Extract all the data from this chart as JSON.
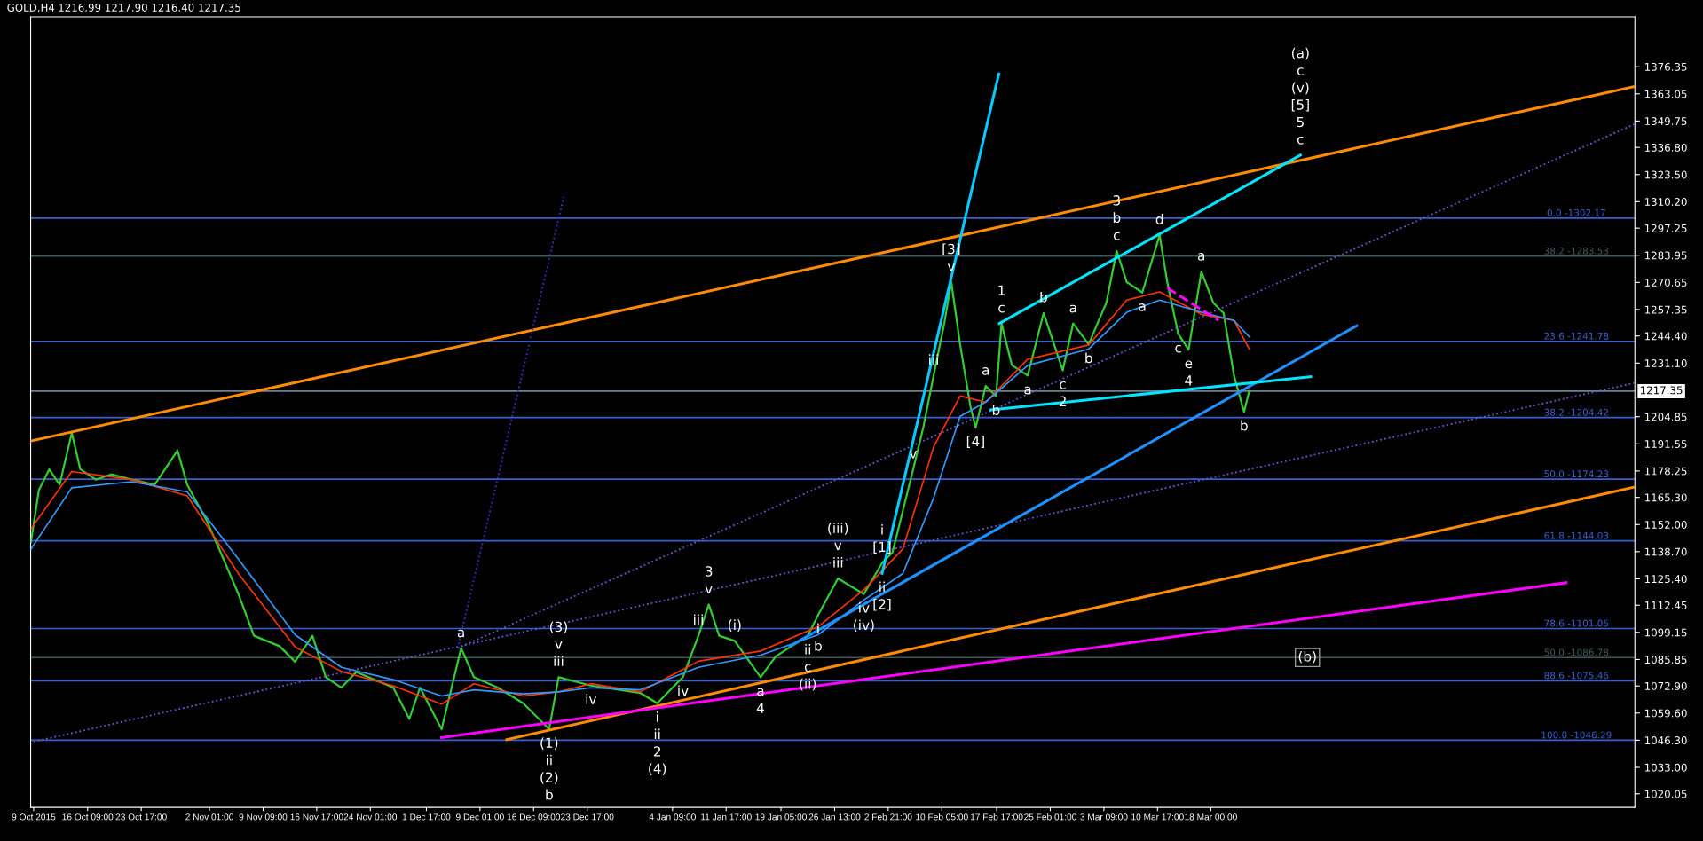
{
  "chart_data": {
    "type": "line",
    "title": "GOLD,H4",
    "subtitle": "1216.99 1217.90 1216.40 1217.35",
    "xlim": [
      "2015-10-08T14:00",
      "2016-05-15T00:00"
    ],
    "ylim": [
      1013.4,
      1400.8
    ],
    "xticks": [
      {
        "value": "2015-10-09T00:00",
        "label": "9 Oct 2015"
      },
      {
        "value": "2015-10-16T09:00",
        "label": "16 Oct 09:00"
      },
      {
        "value": "2015-10-23T17:00",
        "label": "23 Oct 17:00"
      },
      {
        "value": "2015-11-02T01:00",
        "label": "2 Nov 01:00"
      },
      {
        "value": "2015-11-09T09:00",
        "label": "9 Nov 09:00"
      },
      {
        "value": "2015-11-16T17:00",
        "label": "16 Nov 17:00"
      },
      {
        "value": "2015-11-24T01:00",
        "label": "24 Nov 01:00"
      },
      {
        "value": "2015-12-01T17:00",
        "label": "1 Dec 17:00"
      },
      {
        "value": "2015-12-09T01:00",
        "label": "9 Dec 01:00"
      },
      {
        "value": "2015-12-16T09:00",
        "label": "16 Dec 09:00"
      },
      {
        "value": "2015-12-23T17:00",
        "label": "23 Dec 17:00"
      },
      {
        "value": "2016-01-04T09:00",
        "label": "4 Jan 09:00"
      },
      {
        "value": "2016-01-11T17:00",
        "label": "11 Jan 17:00"
      },
      {
        "value": "2016-01-19T05:00",
        "label": "19 Jan 05:00"
      },
      {
        "value": "2016-01-26T13:00",
        "label": "26 Jan 13:00"
      },
      {
        "value": "2016-02-02T21:00",
        "label": "2 Feb 21:00"
      },
      {
        "value": "2016-02-10T05:00",
        "label": "10 Feb 05:00"
      },
      {
        "value": "2016-02-17T17:00",
        "label": "17 Feb 17:00"
      },
      {
        "value": "2016-02-25T01:00",
        "label": "25 Feb 01:00"
      },
      {
        "value": "2016-03-03T09:00",
        "label": "3 Mar 09:00"
      },
      {
        "value": "2016-03-10T17:00",
        "label": "10 Mar 17:00"
      },
      {
        "value": "2016-03-18T00:00",
        "label": "18 Mar 00:00"
      }
    ],
    "yticks": [
      {
        "value": 1020.05,
        "label": "1020.05"
      },
      {
        "value": 1033.0,
        "label": "1033.00"
      },
      {
        "value": 1046.3,
        "label": "1046.30"
      },
      {
        "value": 1059.6,
        "label": "1059.60"
      },
      {
        "value": 1072.9,
        "label": "1072.90"
      },
      {
        "value": 1085.85,
        "label": "1085.85"
      },
      {
        "value": 1099.15,
        "label": "1099.15"
      },
      {
        "value": 1112.45,
        "label": "1112.45"
      },
      {
        "value": 1125.4,
        "label": "1125.40"
      },
      {
        "value": 1138.7,
        "label": "1138.70"
      },
      {
        "value": 1152.0,
        "label": "1152.00"
      },
      {
        "value": 1165.3,
        "label": "1165.30"
      },
      {
        "value": 1178.25,
        "label": "1178.25"
      },
      {
        "value": 1191.55,
        "label": "1191.55"
      },
      {
        "value": 1204.85,
        "label": "1204.85"
      },
      {
        "value": 1231.1,
        "label": "1231.10"
      },
      {
        "value": 1244.4,
        "label": "1244.40"
      },
      {
        "value": 1257.35,
        "label": "1257.35"
      },
      {
        "value": 1270.65,
        "label": "1270.65"
      },
      {
        "value": 1283.95,
        "label": "1283.95"
      },
      {
        "value": 1297.25,
        "label": "1297.25"
      },
      {
        "value": 1310.2,
        "label": "1310.20"
      },
      {
        "value": 1323.5,
        "label": "1323.50"
      },
      {
        "value": 1336.8,
        "label": "1336.80"
      },
      {
        "value": 1349.75,
        "label": "1349.75"
      },
      {
        "value": 1363.05,
        "label": "1363.05"
      },
      {
        "value": 1376.35,
        "label": "1376.35"
      }
    ],
    "grid": false,
    "series": [
      {
        "color": "#33cc33",
        "x": [
          "2015-10-08T15:00",
          "2015-10-09T17:00",
          "2015-10-11T03:00",
          "2015-10-12T13:00",
          "2015-10-14T05:00",
          "2015-10-15T09:00",
          "2015-10-17T12:00",
          "2015-10-19T14:00",
          "2015-10-22T10:00",
          "2015-10-25T13:00",
          "2015-10-28T16:00",
          "2015-10-30T00:00",
          "2015-11-01T17:00",
          "2015-11-03T21:00",
          "2015-11-06T00:00",
          "2015-11-08T03:00",
          "2015-11-11T15:00",
          "2015-11-13T18:00",
          "2015-11-16T03:00",
          "2015-11-17T23:00",
          "2015-11-20T02:00",
          "2015-11-22T03:00",
          "2015-11-27T04:00",
          "2015-11-29T09:00",
          "2015-11-30T20:00",
          "2015-12-03T19:00",
          "2015-12-06T11:00",
          "2015-12-08T05:00",
          "2015-12-11T11:00",
          "2015-12-14T23:00",
          "2015-12-18T12:00",
          "2015-12-19T19:00",
          "2015-12-24T05:00",
          "2015-12-30T23:00",
          "2016-01-02T07:00",
          "2016-01-05T19:00",
          "2016-01-07T22:00",
          "2016-01-09T08:00",
          "2016-01-10T18:00",
          "2016-01-12T21:00",
          "2016-01-16T10:00",
          "2016-01-18T12:00",
          "2016-01-22T21:00",
          "2016-01-24T07:00",
          "2016-01-27T00:00",
          "2016-01-30T13:00",
          "2016-02-02T01:00",
          "2016-02-03T11:00",
          "2016-02-04T21:00",
          "2016-02-06T07:00",
          "2016-02-07T16:00",
          "2016-02-09T02:00",
          "2016-02-10T13:00",
          "2016-02-11T12:00",
          "2016-02-12T17:00",
          "2016-02-14T03:00",
          "2016-02-14T20:00",
          "2016-02-16T05:00",
          "2016-02-17T15:00",
          "2016-02-18T09:00",
          "2016-02-19T19:00",
          "2016-02-21T23:00",
          "2016-02-24T03:00",
          "2016-02-26T18:00",
          "2016-02-28T04:00",
          "2016-03-01T07:00",
          "2016-03-03T17:00",
          "2016-03-05T03:00",
          "2016-03-06T12:00",
          "2016-03-08T15:00",
          "2016-03-11T00:00",
          "2016-03-12T01:00",
          "2016-03-13T13:00",
          "2016-03-14T23:00",
          "2016-03-16T17:00",
          "2016-03-18T08:00",
          "2016-03-19T18:00",
          "2016-03-21T04:00",
          "2016-03-22T13:00",
          "2016-03-23T06:00"
        ],
        "values": [
          1143.4,
          1168.9,
          1179.1,
          1171.5,
          1196.9,
          1179.1,
          1174.0,
          1176.6,
          1174.0,
          1171.5,
          1188.3,
          1171.5,
          1153.6,
          1135.8,
          1117.9,
          1097.5,
          1092.4,
          1084.8,
          1097.5,
          1077.2,
          1072.1,
          1079.7,
          1072.1,
          1056.8,
          1072.1,
          1051.7,
          1091.4,
          1077.2,
          1072.1,
          1064.4,
          1051.7,
          1077.2,
          1073.1,
          1069.5,
          1064.4,
          1077.2,
          1097.5,
          1112.8,
          1097.5,
          1095.0,
          1077.2,
          1087.4,
          1097.5,
          1107.7,
          1125.6,
          1117.9,
          1133.2,
          1138.3,
          1158.7,
          1179.1,
          1199.5,
          1225.0,
          1250.5,
          1270.8,
          1240.3,
          1209.7,
          1199.5,
          1219.9,
          1214.8,
          1250.5,
          1230.1,
          1225.0,
          1255.6,
          1227.5,
          1250.5,
          1240.3,
          1260.7,
          1286.1,
          1270.8,
          1265.7,
          1293.8,
          1270.8,
          1245.4,
          1237.7,
          1276.0,
          1260.7,
          1255.6,
          1225.0,
          1207.2,
          1217.4
        ]
      },
      {
        "color": "#ff3300",
        "x": [
          "2015-10-08T15:00",
          "2015-10-14T05:00",
          "2015-10-22T10:00",
          "2015-10-30T00:00",
          "2015-11-06T00:00",
          "2015-11-13T18:00",
          "2015-11-20T02:00",
          "2015-11-27T04:00",
          "2015-12-03T19:00",
          "2015-12-08T05:00",
          "2015-12-14T23:00",
          "2015-12-19T19:00",
          "2015-12-24T05:00",
          "2015-12-30T23:00",
          "2016-01-07T22:00",
          "2016-01-16T10:00",
          "2016-01-24T07:00",
          "2016-01-30T13:00",
          "2016-02-04T21:00",
          "2016-02-09T02:00",
          "2016-02-12T17:00",
          "2016-02-16T05:00",
          "2016-02-21T23:00",
          "2016-03-01T07:00",
          "2016-03-06T12:00",
          "2016-03-11T00:00",
          "2016-03-16T17:00",
          "2016-03-21T04:00",
          "2016-03-23T06:00"
        ],
        "values": [
          1150,
          1178,
          1174,
          1166,
          1128,
          1092,
          1080,
          1073,
          1064,
          1074,
          1068,
          1070,
          1074,
          1070,
          1085,
          1090,
          1102,
          1120,
          1140,
          1190,
          1215,
          1212,
          1233,
          1240,
          1262,
          1266,
          1255,
          1252,
          1238
        ]
      },
      {
        "color": "#3399ff",
        "x": [
          "2015-10-08T15:00",
          "2015-10-14T05:00",
          "2015-10-22T10:00",
          "2015-10-30T00:00",
          "2015-11-06T00:00",
          "2015-11-13T18:00",
          "2015-11-20T02:00",
          "2015-11-27T04:00",
          "2015-12-03T19:00",
          "2015-12-08T05:00",
          "2015-12-14T23:00",
          "2015-12-19T19:00",
          "2015-12-24T05:00",
          "2015-12-30T23:00",
          "2016-01-07T22:00",
          "2016-01-16T10:00",
          "2016-01-24T07:00",
          "2016-01-30T13:00",
          "2016-02-04T21:00",
          "2016-02-09T02:00",
          "2016-02-12T17:00",
          "2016-02-16T05:00",
          "2016-02-21T23:00",
          "2016-03-01T07:00",
          "2016-03-06T12:00",
          "2016-03-11T00:00",
          "2016-03-16T17:00",
          "2016-03-21T04:00",
          "2016-03-23T06:00"
        ],
        "values": [
          1140,
          1170,
          1173,
          1168,
          1135,
          1098,
          1082,
          1076,
          1068,
          1071,
          1069,
          1070,
          1072,
          1071,
          1082,
          1088,
          1098,
          1115,
          1128,
          1165,
          1205,
          1212,
          1230,
          1238,
          1256,
          1262,
          1256,
          1252,
          1244
        ]
      },
      {
        "color": "#ff8c00",
        "x": [
          "2015-10-08T14:00",
          "2016-05-15T00:00"
        ],
        "values": [
          1192.9,
          1366.7
        ]
      },
      {
        "color": "#ff8c00",
        "x": [
          "2015-12-12T17:00",
          "2016-05-15T00:00"
        ],
        "values": [
          1046.6,
          1170.4
        ]
      },
      {
        "color": "#ff00ff",
        "x": [
          "2015-12-03T19:00",
          "2016-05-05T14:00"
        ],
        "values": [
          1047.6,
          1123.5
        ]
      },
      {
        "color": "#6a5acd",
        "line_style": "dotted",
        "x": [
          "2015-12-06T00:00",
          "2016-05-15T00:00"
        ],
        "values": [
          1091.4,
          1348.3
        ]
      },
      {
        "color": "#6a5acd",
        "line_style": "dotted",
        "x": [
          "2015-10-09T00:00",
          "2016-05-15T00:00"
        ],
        "values": [
          1045.6,
          1221.4
        ]
      },
      {
        "color": "#3333cc",
        "line_style": "dotted",
        "x": [
          "2015-12-06T00:00",
          "2015-12-20T12:00"
        ],
        "values": [
          1091.4,
          1312.6
        ]
      },
      {
        "color": "#00ccff",
        "x": [
          "2016-02-02T01:00",
          "2016-02-18T00:00"
        ],
        "values": [
          1128.1,
          1372.8
        ]
      },
      {
        "color": "#1e90ff",
        "x": [
          "2016-01-20T10:00",
          "2016-04-06T23:00"
        ],
        "values": [
          1092.4,
          1249.4
        ]
      },
      {
        "color": "#00e5ff",
        "x": [
          "2016-02-18T02:00",
          "2016-03-30T06:00"
        ],
        "values": [
          1250.5,
          1333.0
        ]
      },
      {
        "color": "#00e5ff",
        "x": [
          "2016-02-16T22:00",
          "2016-03-31T16:00"
        ],
        "values": [
          1208.2,
          1224.4
        ]
      },
      {
        "color": "#ff00ff",
        "line_style": "dashed",
        "x": [
          "2016-03-12T01:00",
          "2016-03-19T01:00"
        ],
        "values": [
          1268.0,
          1252.0
        ]
      }
    ],
    "ref_lines": [
      {
        "axis": "y",
        "value": 1302.17,
        "color": "#3a5fcd"
      },
      {
        "axis": "y",
        "value": 1283.53,
        "color": "#3c5a5a"
      },
      {
        "axis": "y",
        "value": 1241.78,
        "color": "#3a5fcd"
      },
      {
        "axis": "y",
        "value": 1217.35,
        "label": "1217.35",
        "color": "#708090"
      },
      {
        "axis": "y",
        "value": 1204.42,
        "color": "#3a5fcd"
      },
      {
        "axis": "y",
        "value": 1174.23,
        "color": "#3a5fcd"
      },
      {
        "axis": "y",
        "value": 1144.03,
        "color": "#3a5fcd"
      },
      {
        "axis": "y",
        "value": 1101.05,
        "color": "#3a5fcd"
      },
      {
        "axis": "y",
        "value": 1086.78,
        "color": "#3c5a5a"
      },
      {
        "axis": "y",
        "value": 1075.46,
        "color": "#3a5fcd"
      },
      {
        "axis": "y",
        "value": 1046.29,
        "color": "#3a5fcd"
      }
    ],
    "annotations": [
      {
        "text": "c",
        "x": "2016-03-30T06:00",
        "y": 1333.0
      },
      "5",
      "[5]",
      "(v)",
      "c",
      "(a)",
      {
        "text": "(b)",
        "x": "2016-03-31T05:00",
        "y": 1086.78
      },
      {
        "text": "a",
        "x": "2015-12-06T11:00",
        "y": 1091.4
      },
      {
        "text": "(1)",
        "x": "2015-12-18T12:00",
        "y": 1051.7
      },
      "ii",
      "(2)",
      "b",
      {
        "text": "iii",
        "x": "2015-12-19T19:00",
        "y": 1077.2
      },
      "v",
      "(3)",
      {
        "text": "iv",
        "x": "2015-12-24T05:00",
        "y": 1073.1
      },
      {
        "text": "i",
        "x": "2016-01-02T07:00",
        "y": 1064.4
      },
      "ii",
      "2",
      "(4)",
      {
        "text": "iv",
        "x": "2016-01-05T19:00",
        "y": 1077.2
      },
      {
        "text": "iii",
        "x": "2016-01-07T22:00",
        "y": 1097.5
      },
      {
        "text": "v",
        "x": "2016-01-09T08:00",
        "y": 1112.8
      },
      "3",
      {
        "text": "a",
        "x": "2016-01-16T10:00",
        "y": 1077.2
      },
      "4",
      {
        "text": "(i)",
        "x": "2016-01-12T21:00",
        "y": 1095.0
      },
      {
        "text": "ii",
        "x": "2016-01-22T21:00",
        "y": 1097.5
      },
      "c",
      "(ii)",
      {
        "text": "i",
        "x": "2016-01-24T07:00",
        "y": 1107.7
      },
      "b",
      {
        "text": "iii",
        "x": "2016-01-27T00:00",
        "y": 1125.6
      },
      "v",
      "(iii)",
      {
        "text": "iv",
        "x": "2016-01-30T13:00",
        "y": 1117.9
      },
      "(iv)",
      {
        "text": "[1]",
        "x": "2016-02-02T01:00",
        "y": 1133.2
      },
      "i",
      {
        "text": "ii",
        "x": "2016-02-02T01:00",
        "y": 1128.1
      },
      "[2]",
      {
        "text": "v",
        "x": "2016-02-06T07:00",
        "y": 1179.1
      },
      {
        "text": "iii",
        "x": "2016-02-09T02:00",
        "y": 1225.0
      },
      {
        "text": "v",
        "x": "2016-02-11T12:00",
        "y": 1270.8
      },
      "[3]",
      {
        "text": "[4]",
        "x": "2016-02-14T20:00",
        "y": 1199.5
      },
      {
        "text": "a",
        "x": "2016-02-16T05:00",
        "y": 1219.9
      },
      {
        "text": "b",
        "x": "2016-02-17T15:00",
        "y": 1214.8
      },
      {
        "text": "c",
        "x": "2016-02-18T09:00",
        "y": 1250.5
      },
      "1",
      {
        "text": "a",
        "x": "2016-02-21T23:00",
        "y": 1225.0
      },
      {
        "text": "b",
        "x": "2016-02-24T03:00",
        "y": 1255.6
      },
      {
        "text": "c",
        "x": "2016-02-26T18:00",
        "y": 1227.5
      },
      "2",
      {
        "text": "a",
        "x": "2016-02-28T04:00",
        "y": 1250.5
      },
      {
        "text": "b",
        "x": "2016-03-01T07:00",
        "y": 1240.3
      },
      {
        "text": "c",
        "x": "2016-03-05T03:00",
        "y": 1286.1
      },
      "b",
      "3",
      {
        "text": "d",
        "x": "2016-03-11T00:00",
        "y": 1293.8
      },
      {
        "text": "a",
        "x": "2016-03-08T15:00",
        "y": 1265.7
      },
      {
        "text": "c",
        "x": "2016-03-13T13:00",
        "y": 1245.4
      },
      {
        "text": "e",
        "x": "2016-03-14T23:00",
        "y": 1237.7
      },
      "4",
      {
        "text": "a",
        "x": "2016-03-16T17:00",
        "y": 1276.0
      },
      {
        "text": "b",
        "x": "2016-03-22T13:00",
        "y": 1207.2
      },
      {
        "text": "0.0 -1302.17",
        "x": "2016-05-07T00:00",
        "y": 1302.17
      },
      {
        "text": "38.2 -1283.53",
        "x": "2016-05-07T00:00",
        "y": 1283.53
      },
      {
        "text": "23.6 -1241.78",
        "x": "2016-05-07T00:00",
        "y": 1241.78
      },
      {
        "text": "38.2 -1204.42",
        "x": "2016-05-07T00:00",
        "y": 1204.42
      },
      {
        "text": "50.0 -1174.23",
        "x": "2016-05-07T00:00",
        "y": 1174.23
      },
      {
        "text": "61.8 -1144.03",
        "x": "2016-05-07T00:00",
        "y": 1144.03
      },
      {
        "text": "78.6 -1101.05",
        "x": "2016-05-07T00:00",
        "y": 1101.05
      },
      {
        "text": "50.0 -1086.78",
        "x": "2016-05-07T00:00",
        "y": 1086.78
      },
      {
        "text": "88.6 -1075.46",
        "x": "2016-05-07T00:00",
        "y": 1075.46
      },
      {
        "text": "100.0 -1046.29",
        "x": "2016-05-07T00:00",
        "y": 1046.29
      }
    ]
  }
}
